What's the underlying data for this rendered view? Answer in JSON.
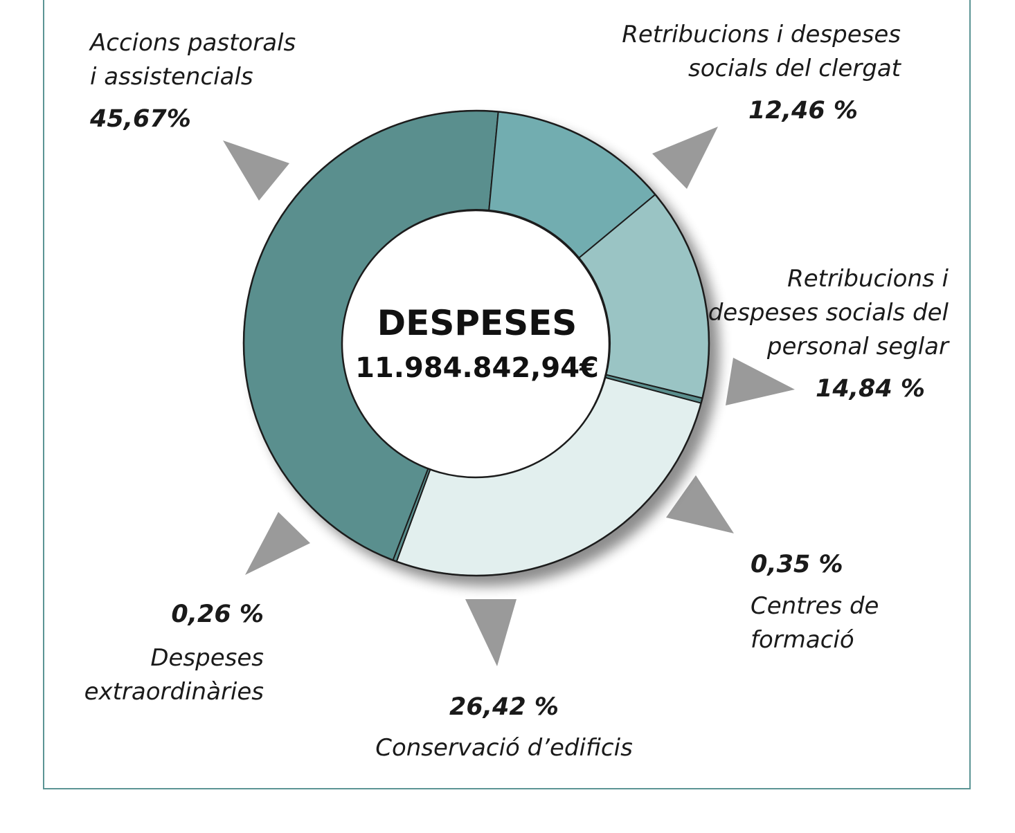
{
  "chart_data": {
    "type": "pie",
    "center": {
      "title": "DESPESES",
      "total": "11.984.842,94€"
    },
    "slices": [
      {
        "name": [
          "Accions pastorals",
          "i assistencials"
        ],
        "value": 45.67,
        "value_label": "45,67%",
        "color": "#5a8f8e"
      },
      {
        "name": [
          "Retribucions i despeses",
          "socials del clergat"
        ],
        "value": 12.46,
        "value_label": "12,46 %",
        "color": "#72adb0"
      },
      {
        "name": [
          "Retribucions i",
          "despeses socials del",
          "personal seglar"
        ],
        "value": 14.84,
        "value_label": "14,84 %",
        "color": "#9ac4c4"
      },
      {
        "name": [
          "Centres de",
          "formació"
        ],
        "value": 0.35,
        "value_label": "0,35 %",
        "color": "#5a8f8e"
      },
      {
        "name": [
          "Conservació d’edificis"
        ],
        "value": 26.42,
        "value_label": "26,42 %",
        "color": "#e2efee"
      },
      {
        "name": [
          "Despeses",
          "extraordinàries"
        ],
        "value": 0.26,
        "value_label": "0,26 %",
        "color": "#5a8f8e"
      }
    ]
  },
  "colors": {
    "frame": "#5b9494",
    "pointer": "#9a9a9a",
    "slice_border": "#1c1c1c"
  }
}
